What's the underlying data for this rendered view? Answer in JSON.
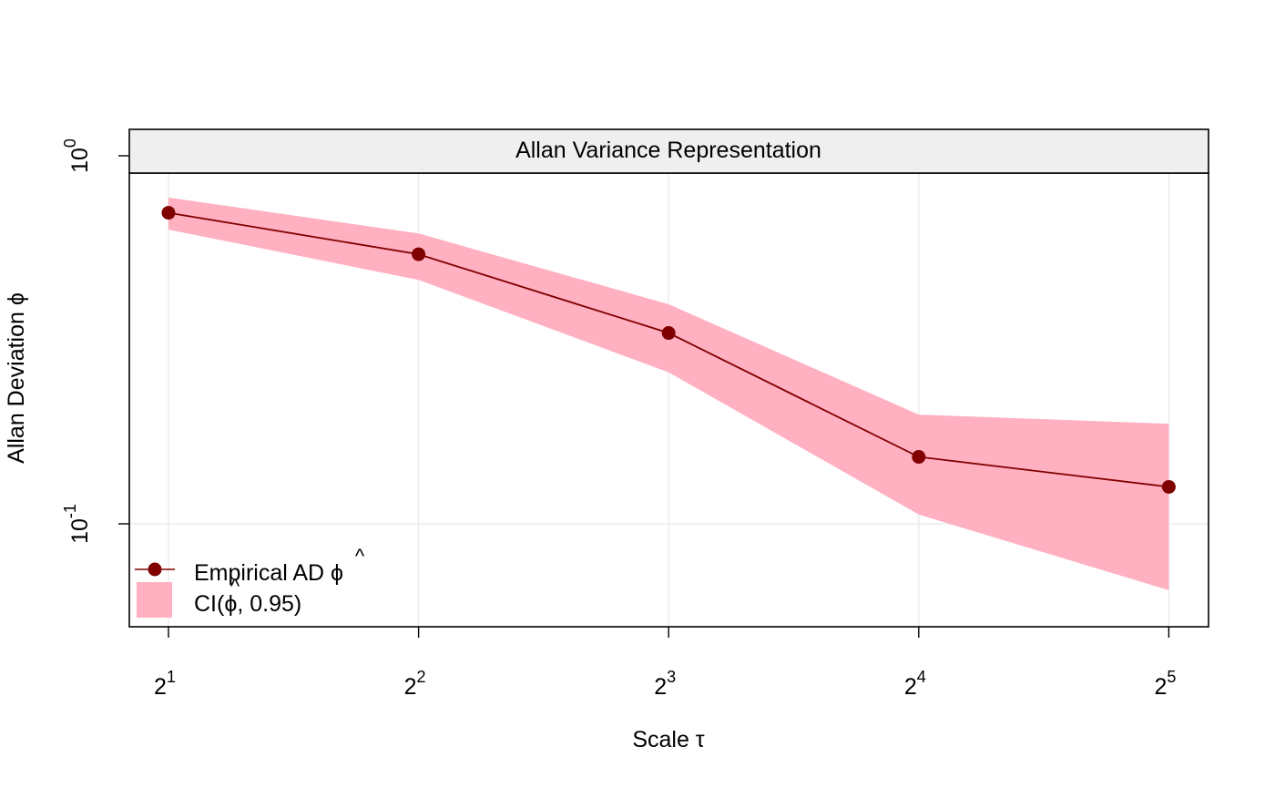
{
  "chart_data": {
    "type": "line",
    "title": "Allan Variance Representation",
    "xlabel": "Scale τ",
    "ylabel": "Allan Deviation ϕ",
    "x_scale": "log2",
    "y_scale": "log10",
    "x": [
      2,
      4,
      8,
      16,
      32
    ],
    "x_tick_labels": [
      {
        "base": "2",
        "exp": "1"
      },
      {
        "base": "2",
        "exp": "2"
      },
      {
        "base": "2",
        "exp": "3"
      },
      {
        "base": "2",
        "exp": "4"
      },
      {
        "base": "2",
        "exp": "5"
      }
    ],
    "y_tick_labels": [
      {
        "value": 1.0,
        "base": "10",
        "exp": "0"
      },
      {
        "value": 0.1,
        "base": "10",
        "exp": "-1"
      }
    ],
    "ylim": [
      0.053,
      1.13
    ],
    "grid": true,
    "legend_position": "bottom-left",
    "series": [
      {
        "name": "Empirical AD ϕ̂",
        "legend_text": "Empirical AD ",
        "legend_symbol": "ϕ",
        "color": "#800000",
        "values": [
          0.7,
          0.54,
          0.33,
          0.152,
          0.126
        ]
      }
    ],
    "ci_band": {
      "name": "CI(ϕ̂, 0.95)",
      "legend_prefix": "CI(",
      "legend_symbol": "ϕ",
      "legend_suffix": ", 0.95)",
      "color": "#FFB0C1",
      "upper": [
        0.77,
        0.615,
        0.395,
        0.198,
        0.187
      ],
      "lower": [
        0.63,
        0.46,
        0.258,
        0.106,
        0.066
      ]
    },
    "colors": {
      "line": "#800000",
      "band": "#FFB0C1",
      "strip": "#EFEFEF",
      "grid": "#EBEBEB"
    }
  }
}
